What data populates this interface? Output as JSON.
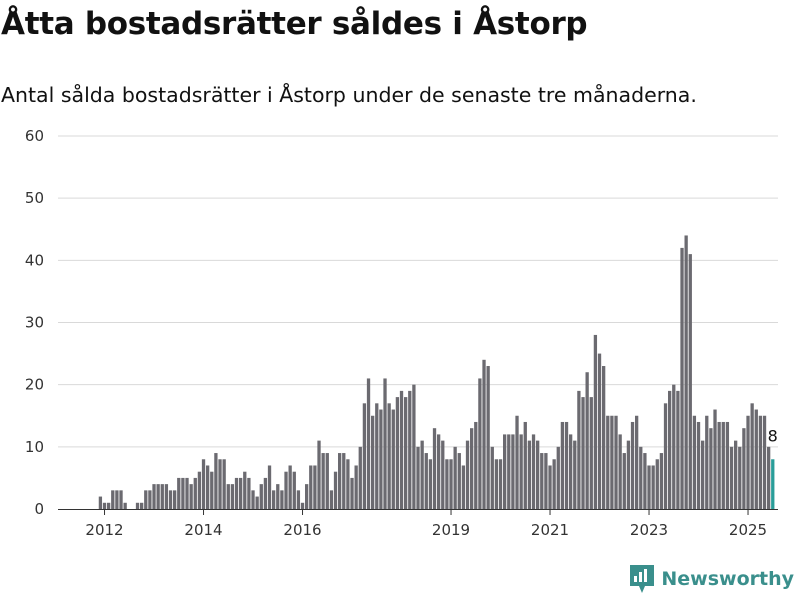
{
  "header": {
    "title": "Åtta bostadsrätter såldes i Åstorp",
    "subtitle": "Antal sålda bostadsrätter i Åstorp under de senaste tre månaderna."
  },
  "brand": {
    "name": "Newsworthy",
    "icon": "newsworthy-logo-icon",
    "color": "#3a8f8c"
  },
  "colors": {
    "bar": "#6b6a70",
    "highlight": "#2a9d99",
    "grid": "#d9d9d9"
  },
  "chart_data": {
    "type": "bar",
    "start": "2011-10",
    "values": [
      0,
      0,
      2,
      1,
      1,
      3,
      3,
      3,
      1,
      0,
      0,
      1,
      1,
      3,
      3,
      4,
      4,
      4,
      4,
      3,
      3,
      5,
      5,
      5,
      4,
      5,
      6,
      8,
      7,
      6,
      9,
      8,
      8,
      4,
      4,
      5,
      5,
      6,
      5,
      3,
      2,
      4,
      5,
      7,
      3,
      4,
      3,
      6,
      7,
      6,
      3,
      1,
      4,
      7,
      7,
      11,
      9,
      9,
      3,
      6,
      9,
      9,
      8,
      5,
      7,
      10,
      17,
      21,
      15,
      17,
      16,
      21,
      17,
      16,
      18,
      19,
      18,
      19,
      20,
      10,
      11,
      9,
      8,
      13,
      12,
      11,
      8,
      8,
      10,
      9,
      7,
      11,
      13,
      14,
      21,
      24,
      23,
      10,
      8,
      8,
      12,
      12,
      12,
      15,
      12,
      14,
      11,
      12,
      11,
      9,
      9,
      7,
      8,
      10,
      14,
      14,
      12,
      11,
      19,
      18,
      22,
      18,
      28,
      25,
      23,
      15,
      15,
      15,
      12,
      9,
      11,
      14,
      15,
      10,
      9,
      7,
      7,
      8,
      9,
      17,
      19,
      20,
      19,
      42,
      44,
      41,
      15,
      14,
      11,
      15,
      13,
      16,
      14,
      14,
      14,
      10,
      11,
      10,
      13,
      15,
      17,
      16,
      15,
      15,
      10,
      8
    ],
    "xtick_labels": [
      "2012",
      "2014",
      "2016",
      "2019",
      "2021",
      "2023",
      "2025"
    ],
    "xtick_years": [
      2012,
      2014,
      2016,
      2019,
      2021,
      2023,
      2025
    ],
    "yticks": [
      0,
      10,
      20,
      30,
      40,
      50,
      60
    ],
    "ylim": [
      0,
      60
    ],
    "last_label": "8",
    "grid": true,
    "legend": "none"
  }
}
